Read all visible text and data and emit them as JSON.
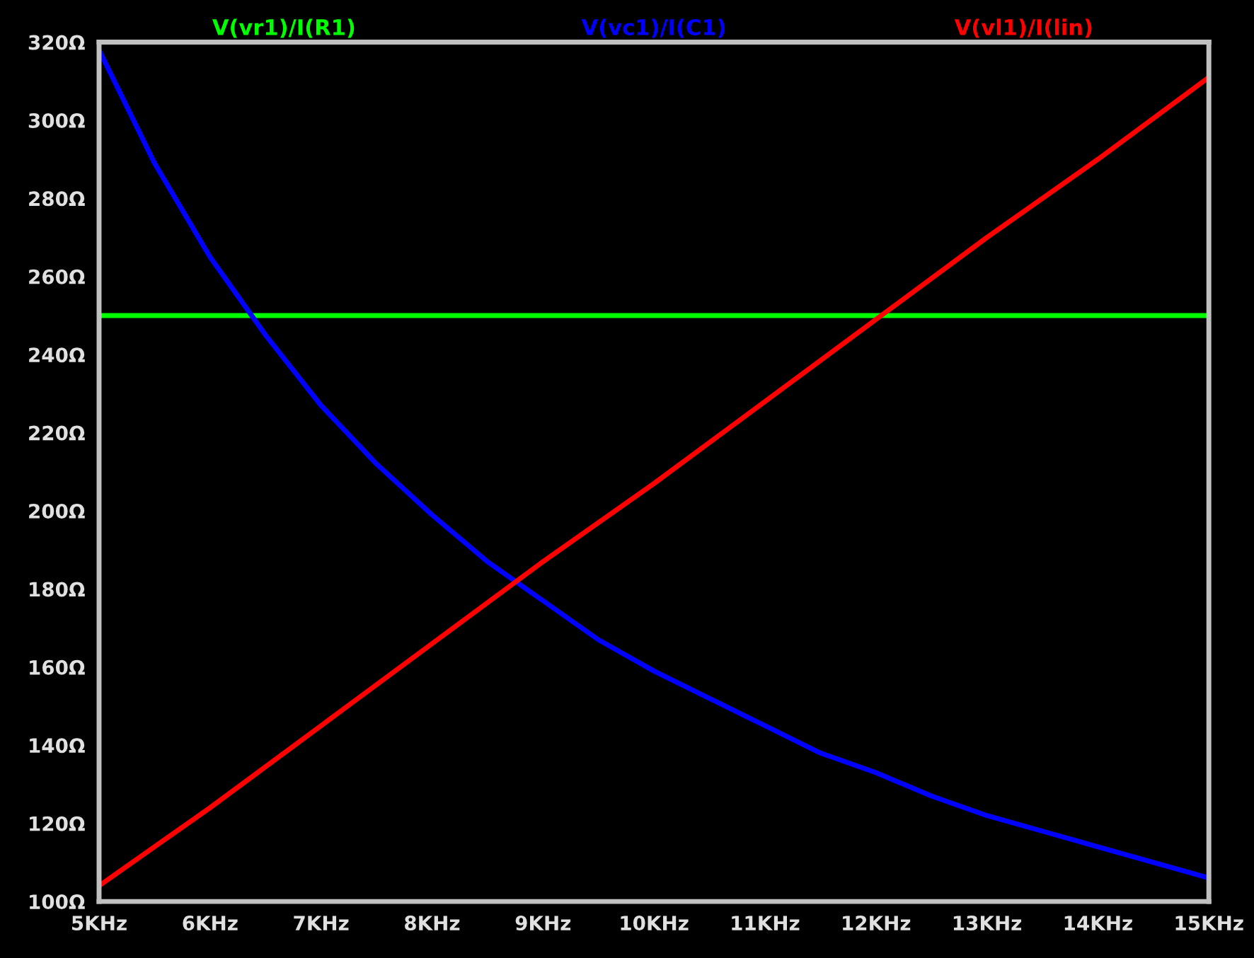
{
  "chart_data": {
    "type": "line",
    "x": [
      5,
      5.5,
      6,
      6.5,
      7,
      7.5,
      8,
      8.5,
      9,
      9.5,
      10,
      10.5,
      11,
      11.5,
      12,
      12.5,
      13,
      13.5,
      14,
      14.5,
      15
    ],
    "series": [
      {
        "name": "V(vr1)/I(R1)",
        "color": "#00ff00",
        "x": [
          5,
          15
        ],
        "values": [
          250,
          250
        ]
      },
      {
        "name": "V(vc1)/I(C1)",
        "color": "#0000ff",
        "values": [
          318,
          289,
          265,
          245,
          227,
          212,
          199,
          187,
          177,
          167,
          159,
          152,
          145,
          138,
          133,
          127,
          122,
          118,
          114,
          110,
          106
        ]
      },
      {
        "name": "V(vl1)/I(lin)",
        "color": "#ff0000",
        "x": [
          5,
          6,
          7,
          8,
          9,
          10,
          11,
          12,
          13,
          14,
          15
        ],
        "values": [
          104,
          124,
          145,
          166,
          187,
          207,
          228,
          249,
          270,
          290,
          311
        ]
      }
    ],
    "xlim": [
      5,
      15
    ],
    "xticks": [
      {
        "value": 5,
        "label": "5KHz"
      },
      {
        "value": 6,
        "label": "6KHz"
      },
      {
        "value": 7,
        "label": "7KHz"
      },
      {
        "value": 8,
        "label": "8KHz"
      },
      {
        "value": 9,
        "label": "9KHz"
      },
      {
        "value": 10,
        "label": "10KHz"
      },
      {
        "value": 11,
        "label": "11KHz"
      },
      {
        "value": 12,
        "label": "12KHz"
      },
      {
        "value": 13,
        "label": "13KHz"
      },
      {
        "value": 14,
        "label": "14KHz"
      },
      {
        "value": 15,
        "label": "15KHz"
      }
    ],
    "ylim": [
      100,
      320
    ],
    "yticks": [
      {
        "value": 100,
        "label": "100Ω"
      },
      {
        "value": 120,
        "label": "120Ω"
      },
      {
        "value": 140,
        "label": "140Ω"
      },
      {
        "value": 160,
        "label": "160Ω"
      },
      {
        "value": 180,
        "label": "180Ω"
      },
      {
        "value": 200,
        "label": "200Ω"
      },
      {
        "value": 220,
        "label": "220Ω"
      },
      {
        "value": 240,
        "label": "240Ω"
      },
      {
        "value": 260,
        "label": "260Ω"
      },
      {
        "value": 280,
        "label": "280Ω"
      },
      {
        "value": 300,
        "label": "300Ω"
      },
      {
        "value": 320,
        "label": "320Ω"
      }
    ],
    "grid": false,
    "legend": "top",
    "marker": "none",
    "line_style": "solid"
  }
}
